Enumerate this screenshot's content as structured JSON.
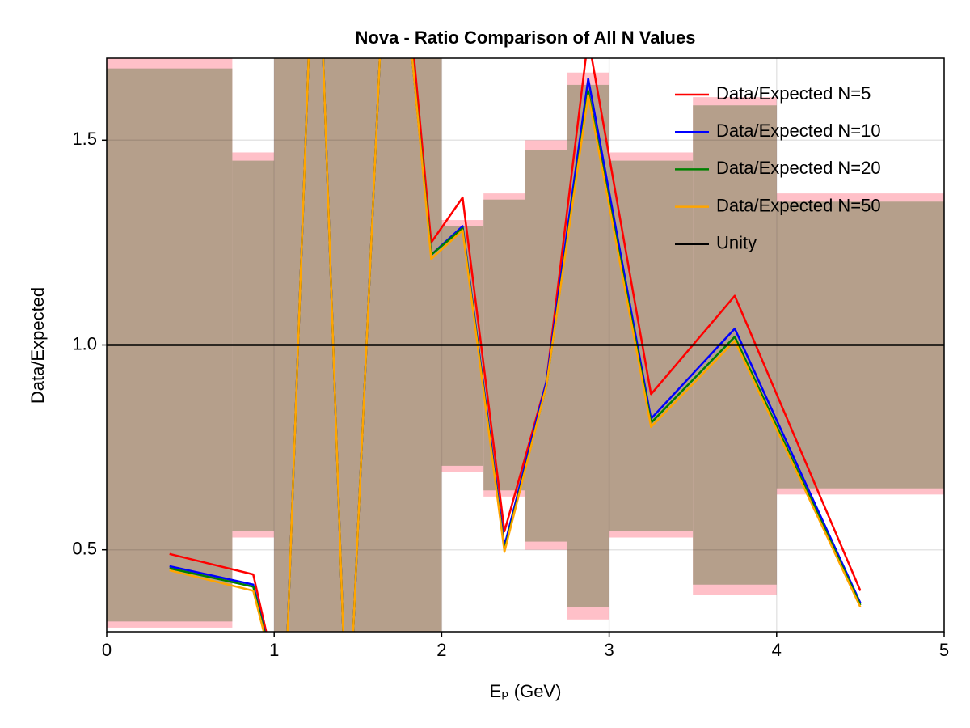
{
  "chart_data": {
    "type": "line",
    "title": "Nova - Ratio Comparison of All N Values",
    "xlabel": "Eₚ (GeV)",
    "ylabel": "Data/Expected",
    "xlim": [
      0,
      5
    ],
    "ylim": [
      0.3,
      1.7
    ],
    "xticks": [
      0,
      1,
      2,
      3,
      4,
      5
    ],
    "yticks": [
      0.5,
      {
        "value": 1,
        "label": "1.0"
      },
      1.5
    ],
    "grid": true,
    "legend": "upper right",
    "bands": [
      {
        "color": "#ffc0c8",
        "edges": [
          0,
          0.75,
          1,
          2,
          2.25,
          2.5,
          2.75,
          3,
          3.5,
          4,
          5
        ],
        "lower": [
          0.31,
          0.53,
          -1,
          0.69,
          0.63,
          0.5,
          0.33,
          0.53,
          0.39,
          0.635
        ],
        "upper": [
          1.7,
          1.47,
          3,
          1.305,
          1.37,
          1.5,
          1.665,
          1.47,
          1.605,
          1.37
        ]
      },
      {
        "color": "#b59f8b",
        "edges": [
          0,
          0.75,
          1,
          2,
          2.25,
          2.5,
          2.75,
          3,
          3.5,
          4,
          5
        ],
        "lower": [
          0.325,
          0.545,
          -1,
          0.705,
          0.645,
          0.52,
          0.36,
          0.545,
          0.415,
          0.65
        ],
        "upper": [
          1.675,
          1.45,
          3,
          1.29,
          1.355,
          1.475,
          1.635,
          1.45,
          1.585,
          1.35
        ]
      }
    ],
    "series": [
      {
        "name": "Data/Expected N=5",
        "color": "#ff0000",
        "x": [
          0.375,
          0.875,
          1.0625,
          1.25,
          1.4375,
          1.6875,
          1.8125,
          1.9375,
          2.125,
          2.375,
          2.625,
          2.875,
          3.25,
          3.75,
          4.5
        ],
        "values": [
          0.49,
          0.44,
          0.1,
          2.2,
          0.0,
          2.2,
          1.8,
          1.25,
          1.36,
          0.545,
          0.91,
          1.75,
          0.88,
          1.12,
          0.4
        ]
      },
      {
        "name": "Data/Expected N=10",
        "color": "#0000ff",
        "x": [
          0.375,
          0.875,
          1.0625,
          1.25,
          1.4375,
          1.6875,
          1.8125,
          1.9375,
          2.125,
          2.375,
          2.625,
          2.875,
          3.25,
          3.75,
          4.5
        ],
        "values": [
          0.46,
          0.415,
          0.1,
          2.2,
          0.0,
          2.2,
          1.75,
          1.22,
          1.29,
          0.51,
          0.91,
          1.65,
          0.82,
          1.04,
          0.37
        ]
      },
      {
        "name": "Data/Expected N=20",
        "color": "#008000",
        "x": [
          0.375,
          0.875,
          1.0625,
          1.25,
          1.4375,
          1.6875,
          1.8125,
          1.9375,
          2.125,
          2.375,
          2.625,
          2.875,
          3.25,
          3.75,
          4.5
        ],
        "values": [
          0.455,
          0.41,
          0.1,
          2.2,
          0.0,
          2.2,
          1.75,
          1.22,
          1.285,
          0.5,
          0.9,
          1.62,
          0.81,
          1.02,
          0.365
        ]
      },
      {
        "name": "Data/Expected N=50",
        "color": "#ffa500",
        "x": [
          0.375,
          0.875,
          1.0625,
          1.25,
          1.4375,
          1.6875,
          1.8125,
          1.9375,
          2.125,
          2.375,
          2.625,
          2.875,
          3.25,
          3.75,
          4.5
        ],
        "values": [
          0.45,
          0.4,
          0.1,
          2.2,
          0.0,
          2.2,
          1.75,
          1.21,
          1.28,
          0.495,
          0.9,
          1.61,
          0.8,
          1.01,
          0.36
        ]
      },
      {
        "name": "Unity",
        "color": "#000000",
        "x": [
          0,
          5
        ],
        "values": [
          1,
          1
        ]
      }
    ]
  }
}
